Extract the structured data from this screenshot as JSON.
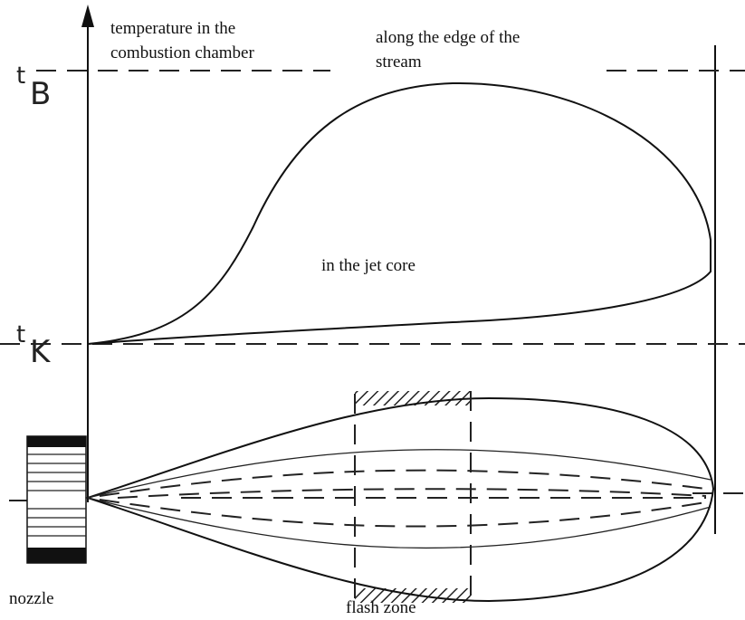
{
  "axis_labels": [
    {
      "main": "t",
      "sub": "B"
    },
    {
      "main": "t",
      "sub": "K"
    }
  ],
  "annotations": {
    "temperature": [
      "temperature in the",
      "combustion chamber"
    ],
    "edge": [
      "along the edge of the",
      "stream"
    ],
    "core": "in the jet core",
    "nozzle": "nozzle",
    "flash_zone": "flash zone"
  }
}
